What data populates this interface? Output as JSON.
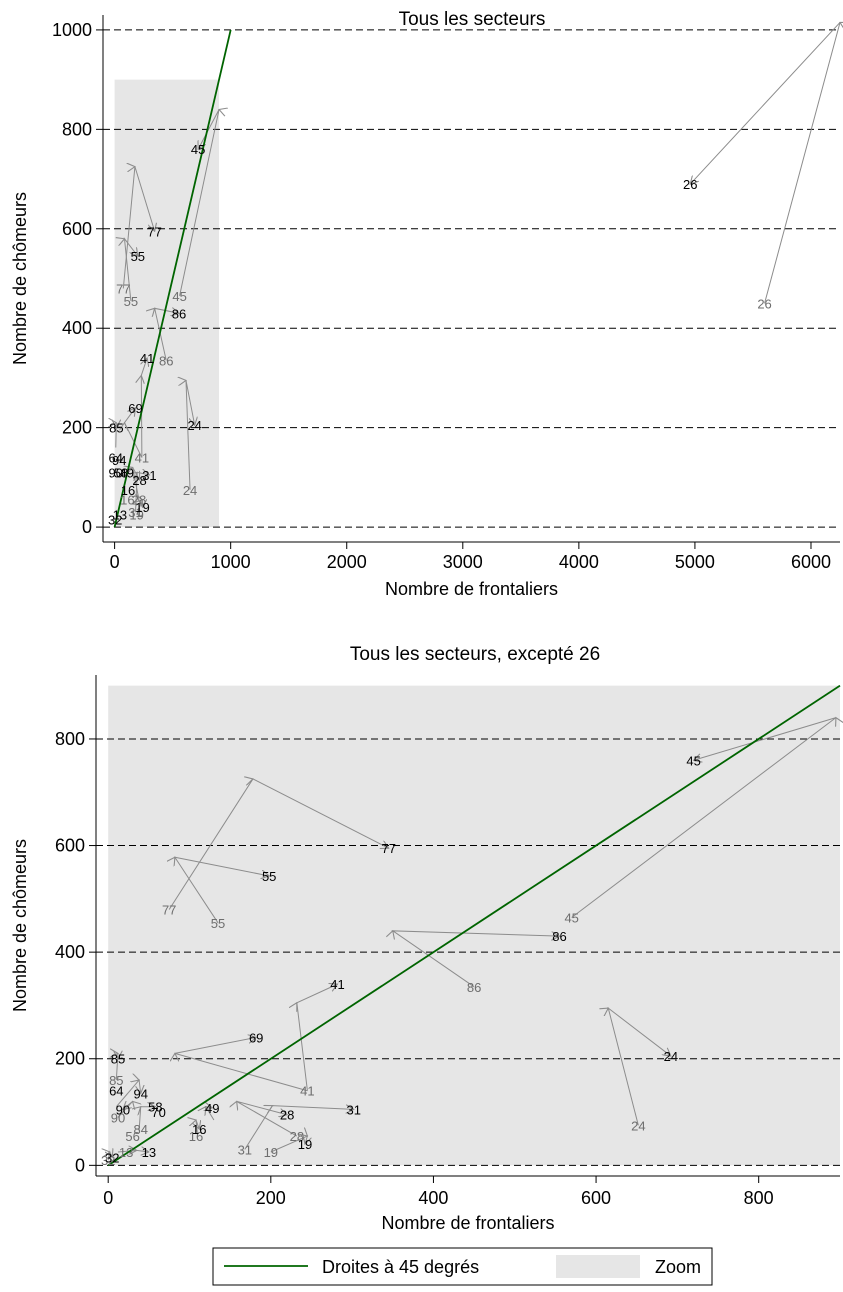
{
  "colors": {
    "diagonal": "#006400",
    "zoom_fill": "#e6e6e6",
    "arrow": "#8c8c8c",
    "label_dark": "#000000",
    "label_light": "#6e6e6e"
  },
  "chart_data": [
    {
      "type": "scatter",
      "title": "Tous les secteurs",
      "xlabel": "Nombre de frontaliers",
      "ylabel": "Nombre de chômeurs",
      "xlim": [
        -100,
        6250
      ],
      "ylim": [
        -30,
        1030
      ],
      "xticks": [
        0,
        1000,
        2000,
        3000,
        4000,
        5000,
        6000
      ],
      "yticks": [
        0,
        200,
        400,
        600,
        800,
        1000
      ],
      "grid": "horizontal dashed at y ticks",
      "diagonal": [
        [
          0,
          0
        ],
        [
          1000,
          1000
        ]
      ],
      "zoom_region": {
        "x": [
          0,
          900
        ],
        "y": [
          0,
          900
        ]
      },
      "arrows": [
        {
          "sector": "26",
          "from": [
            5600,
            450
          ],
          "to": [
            6250,
            1015
          ],
          "end": [
            4960,
            690
          ]
        },
        {
          "sector": "45",
          "from": [
            560,
            465
          ],
          "to": [
            900,
            840
          ],
          "end": [
            720,
            760
          ]
        },
        {
          "sector": "77",
          "from": [
            75,
            480
          ],
          "to": [
            175,
            725
          ],
          "end": [
            345,
            595
          ]
        },
        {
          "sector": "55",
          "from": [
            140,
            455
          ],
          "to": [
            85,
            580
          ],
          "end": [
            200,
            545
          ]
        },
        {
          "sector": "86",
          "from": [
            445,
            335
          ],
          "to": [
            345,
            440
          ],
          "end": [
            555,
            430
          ]
        },
        {
          "sector": "41",
          "from": [
            235,
            140
          ],
          "to": [
            230,
            305
          ],
          "end": [
            280,
            340
          ]
        },
        {
          "sector": "24",
          "from": [
            650,
            75
          ],
          "to": [
            615,
            295
          ],
          "end": [
            690,
            205
          ]
        },
        {
          "sector": "69",
          "from": [
            235,
            140
          ],
          "to": [
            85,
            210
          ],
          "end": [
            180,
            240
          ]
        },
        {
          "sector": "85",
          "from": [
            10,
            160
          ],
          "to": [
            15,
            210
          ],
          "end": [
            15,
            200
          ]
        },
        {
          "sector": "31",
          "from": [
            180,
            30
          ],
          "to": [
            195,
            110
          ],
          "end": [
            300,
            105
          ]
        },
        {
          "sector": "28",
          "from": [
            210,
            55
          ],
          "to": [
            155,
            120
          ],
          "end": [
            215,
            95
          ]
        },
        {
          "sector": "19",
          "from": [
            190,
            25
          ],
          "to": [
            240,
            55
          ],
          "end": [
            240,
            40
          ]
        }
      ],
      "labels_end": [
        {
          "text": "26",
          "x": 4960,
          "y": 690
        },
        {
          "text": "45",
          "x": 720,
          "y": 760
        },
        {
          "text": "77",
          "x": 345,
          "y": 595
        },
        {
          "text": "55",
          "x": 200,
          "y": 545
        },
        {
          "text": "86",
          "x": 555,
          "y": 430
        },
        {
          "text": "41",
          "x": 280,
          "y": 340
        },
        {
          "text": "24",
          "x": 690,
          "y": 205
        },
        {
          "text": "69",
          "x": 180,
          "y": 240
        },
        {
          "text": "85",
          "x": 15,
          "y": 200
        },
        {
          "text": "64",
          "x": 10,
          "y": 140
        },
        {
          "text": "94",
          "x": 40,
          "y": 135
        },
        {
          "text": "90",
          "x": 10,
          "y": 110
        },
        {
          "text": "58",
          "x": 55,
          "y": 110
        },
        {
          "text": "49",
          "x": 105,
          "y": 110
        },
        {
          "text": "31",
          "x": 300,
          "y": 105
        },
        {
          "text": "28",
          "x": 215,
          "y": 95
        },
        {
          "text": "16",
          "x": 115,
          "y": 75
        },
        {
          "text": "19",
          "x": 240,
          "y": 40
        },
        {
          "text": "13",
          "x": 45,
          "y": 25
        },
        {
          "text": "32",
          "x": 5,
          "y": 15
        }
      ],
      "labels_start": [
        {
          "text": "26",
          "x": 5600,
          "y": 450
        },
        {
          "text": "45",
          "x": 560,
          "y": 465
        },
        {
          "text": "77",
          "x": 75,
          "y": 480
        },
        {
          "text": "55",
          "x": 140,
          "y": 455
        },
        {
          "text": "86",
          "x": 445,
          "y": 335
        },
        {
          "text": "41",
          "x": 235,
          "y": 140
        },
        {
          "text": "24",
          "x": 650,
          "y": 75
        },
        {
          "text": "28",
          "x": 210,
          "y": 55
        },
        {
          "text": "16",
          "x": 110,
          "y": 55
        },
        {
          "text": "31",
          "x": 180,
          "y": 30
        },
        {
          "text": "19",
          "x": 190,
          "y": 25
        }
      ]
    },
    {
      "type": "scatter",
      "title": "Tous les secteurs, excepté 26",
      "xlabel": "Nombre de frontaliers",
      "ylabel": "Nombre de chômeurs",
      "xlim": [
        -15,
        900
      ],
      "ylim": [
        -20,
        920
      ],
      "xticks": [
        0,
        200,
        400,
        600,
        800
      ],
      "yticks": [
        0,
        200,
        400,
        600,
        800
      ],
      "grid": "horizontal dashed at y ticks",
      "diagonal": [
        [
          0,
          0
        ],
        [
          900,
          900
        ]
      ],
      "zoom_region": {
        "x": [
          0,
          900
        ],
        "y": [
          0,
          900
        ]
      },
      "arrows": [
        {
          "sector": "45",
          "from": [
            570,
            465
          ],
          "to": [
            895,
            840
          ],
          "end": [
            720,
            760
          ]
        },
        {
          "sector": "77",
          "from": [
            75,
            480
          ],
          "to": [
            178,
            725
          ],
          "end": [
            345,
            595
          ]
        },
        {
          "sector": "55",
          "from": [
            135,
            455
          ],
          "to": [
            82,
            578
          ],
          "end": [
            198,
            543
          ]
        },
        {
          "sector": "86",
          "from": [
            450,
            335
          ],
          "to": [
            350,
            440
          ],
          "end": [
            555,
            430
          ]
        },
        {
          "sector": "41",
          "from": [
            245,
            140
          ],
          "to": [
            232,
            305
          ],
          "end": [
            282,
            340
          ]
        },
        {
          "sector": "24",
          "from": [
            652,
            75
          ],
          "to": [
            615,
            295
          ],
          "end": [
            692,
            205
          ]
        },
        {
          "sector": "69",
          "from": [
            245,
            140
          ],
          "to": [
            82,
            210
          ],
          "end": [
            182,
            240
          ]
        },
        {
          "sector": "85",
          "from": [
            10,
            160
          ],
          "to": [
            12,
            210
          ],
          "end": [
            12,
            200
          ]
        },
        {
          "sector": "94",
          "from": [
            10,
            110
          ],
          "to": [
            38,
            160
          ],
          "end": [
            40,
            135
          ]
        },
        {
          "sector": "90",
          "from": [
            12,
            90
          ],
          "to": [
            30,
            120
          ],
          "end": [
            18,
            105
          ]
        },
        {
          "sector": "58",
          "from": [
            38,
            65
          ],
          "to": [
            40,
            110
          ],
          "end": [
            58,
            110
          ]
        },
        {
          "sector": "49",
          "from": [
            130,
            85
          ],
          "to": [
            120,
            110
          ],
          "end": [
            128,
            108
          ]
        },
        {
          "sector": "31",
          "from": [
            168,
            30
          ],
          "to": [
            202,
            112
          ],
          "end": [
            302,
            105
          ]
        },
        {
          "sector": "28",
          "from": [
            232,
            55
          ],
          "to": [
            158,
            120
          ],
          "end": [
            220,
            95
          ]
        },
        {
          "sector": "19",
          "from": [
            200,
            25
          ],
          "to": [
            245,
            55
          ],
          "end": [
            242,
            40
          ]
        },
        {
          "sector": "16",
          "from": [
            110,
            55
          ],
          "to": [
            108,
            85
          ],
          "end": [
            112,
            68
          ]
        },
        {
          "sector": "13",
          "from": [
            12,
            25
          ],
          "to": [
            35,
            28
          ],
          "end": [
            50,
            25
          ]
        },
        {
          "sector": "32",
          "from": [
            0,
            10
          ],
          "to": [
            2,
            25
          ],
          "end": [
            5,
            15
          ]
        }
      ],
      "labels_end": [
        {
          "text": "45",
          "x": 720,
          "y": 760
        },
        {
          "text": "77",
          "x": 345,
          "y": 595
        },
        {
          "text": "55",
          "x": 198,
          "y": 543
        },
        {
          "text": "86",
          "x": 555,
          "y": 430
        },
        {
          "text": "41",
          "x": 282,
          "y": 340
        },
        {
          "text": "69",
          "x": 182,
          "y": 240
        },
        {
          "text": "24",
          "x": 692,
          "y": 205
        },
        {
          "text": "85",
          "x": 12,
          "y": 200
        },
        {
          "text": "64",
          "x": 10,
          "y": 140
        },
        {
          "text": "94",
          "x": 40,
          "y": 135
        },
        {
          "text": "90",
          "x": 18,
          "y": 105
        },
        {
          "text": "58",
          "x": 58,
          "y": 110
        },
        {
          "text": "70",
          "x": 62,
          "y": 100
        },
        {
          "text": "49",
          "x": 128,
          "y": 108
        },
        {
          "text": "31",
          "x": 302,
          "y": 105
        },
        {
          "text": "28",
          "x": 220,
          "y": 95
        },
        {
          "text": "16",
          "x": 112,
          "y": 68
        },
        {
          "text": "19",
          "x": 242,
          "y": 40
        },
        {
          "text": "13",
          "x": 50,
          "y": 25
        },
        {
          "text": "32",
          "x": 5,
          "y": 15
        }
      ],
      "labels_start": [
        {
          "text": "45",
          "x": 570,
          "y": 465
        },
        {
          "text": "77",
          "x": 75,
          "y": 480
        },
        {
          "text": "55",
          "x": 135,
          "y": 455
        },
        {
          "text": "86",
          "x": 450,
          "y": 335
        },
        {
          "text": "41",
          "x": 245,
          "y": 140
        },
        {
          "text": "24",
          "x": 652,
          "y": 75
        },
        {
          "text": "85",
          "x": 10,
          "y": 160
        },
        {
          "text": "90",
          "x": 12,
          "y": 90
        },
        {
          "text": "84",
          "x": 40,
          "y": 68
        },
        {
          "text": "56",
          "x": 30,
          "y": 55
        },
        {
          "text": "16",
          "x": 108,
          "y": 55
        },
        {
          "text": "28",
          "x": 232,
          "y": 55
        },
        {
          "text": "31",
          "x": 168,
          "y": 30
        },
        {
          "text": "19",
          "x": 200,
          "y": 25
        },
        {
          "text": "13",
          "x": 22,
          "y": 25
        },
        {
          "text": "32",
          "x": 0,
          "y": 10
        }
      ]
    }
  ],
  "legend": {
    "position": "bottom",
    "items": [
      {
        "label": "Droites à 45 degrés",
        "kind": "line"
      },
      {
        "label": "Zoom",
        "kind": "area"
      }
    ]
  }
}
